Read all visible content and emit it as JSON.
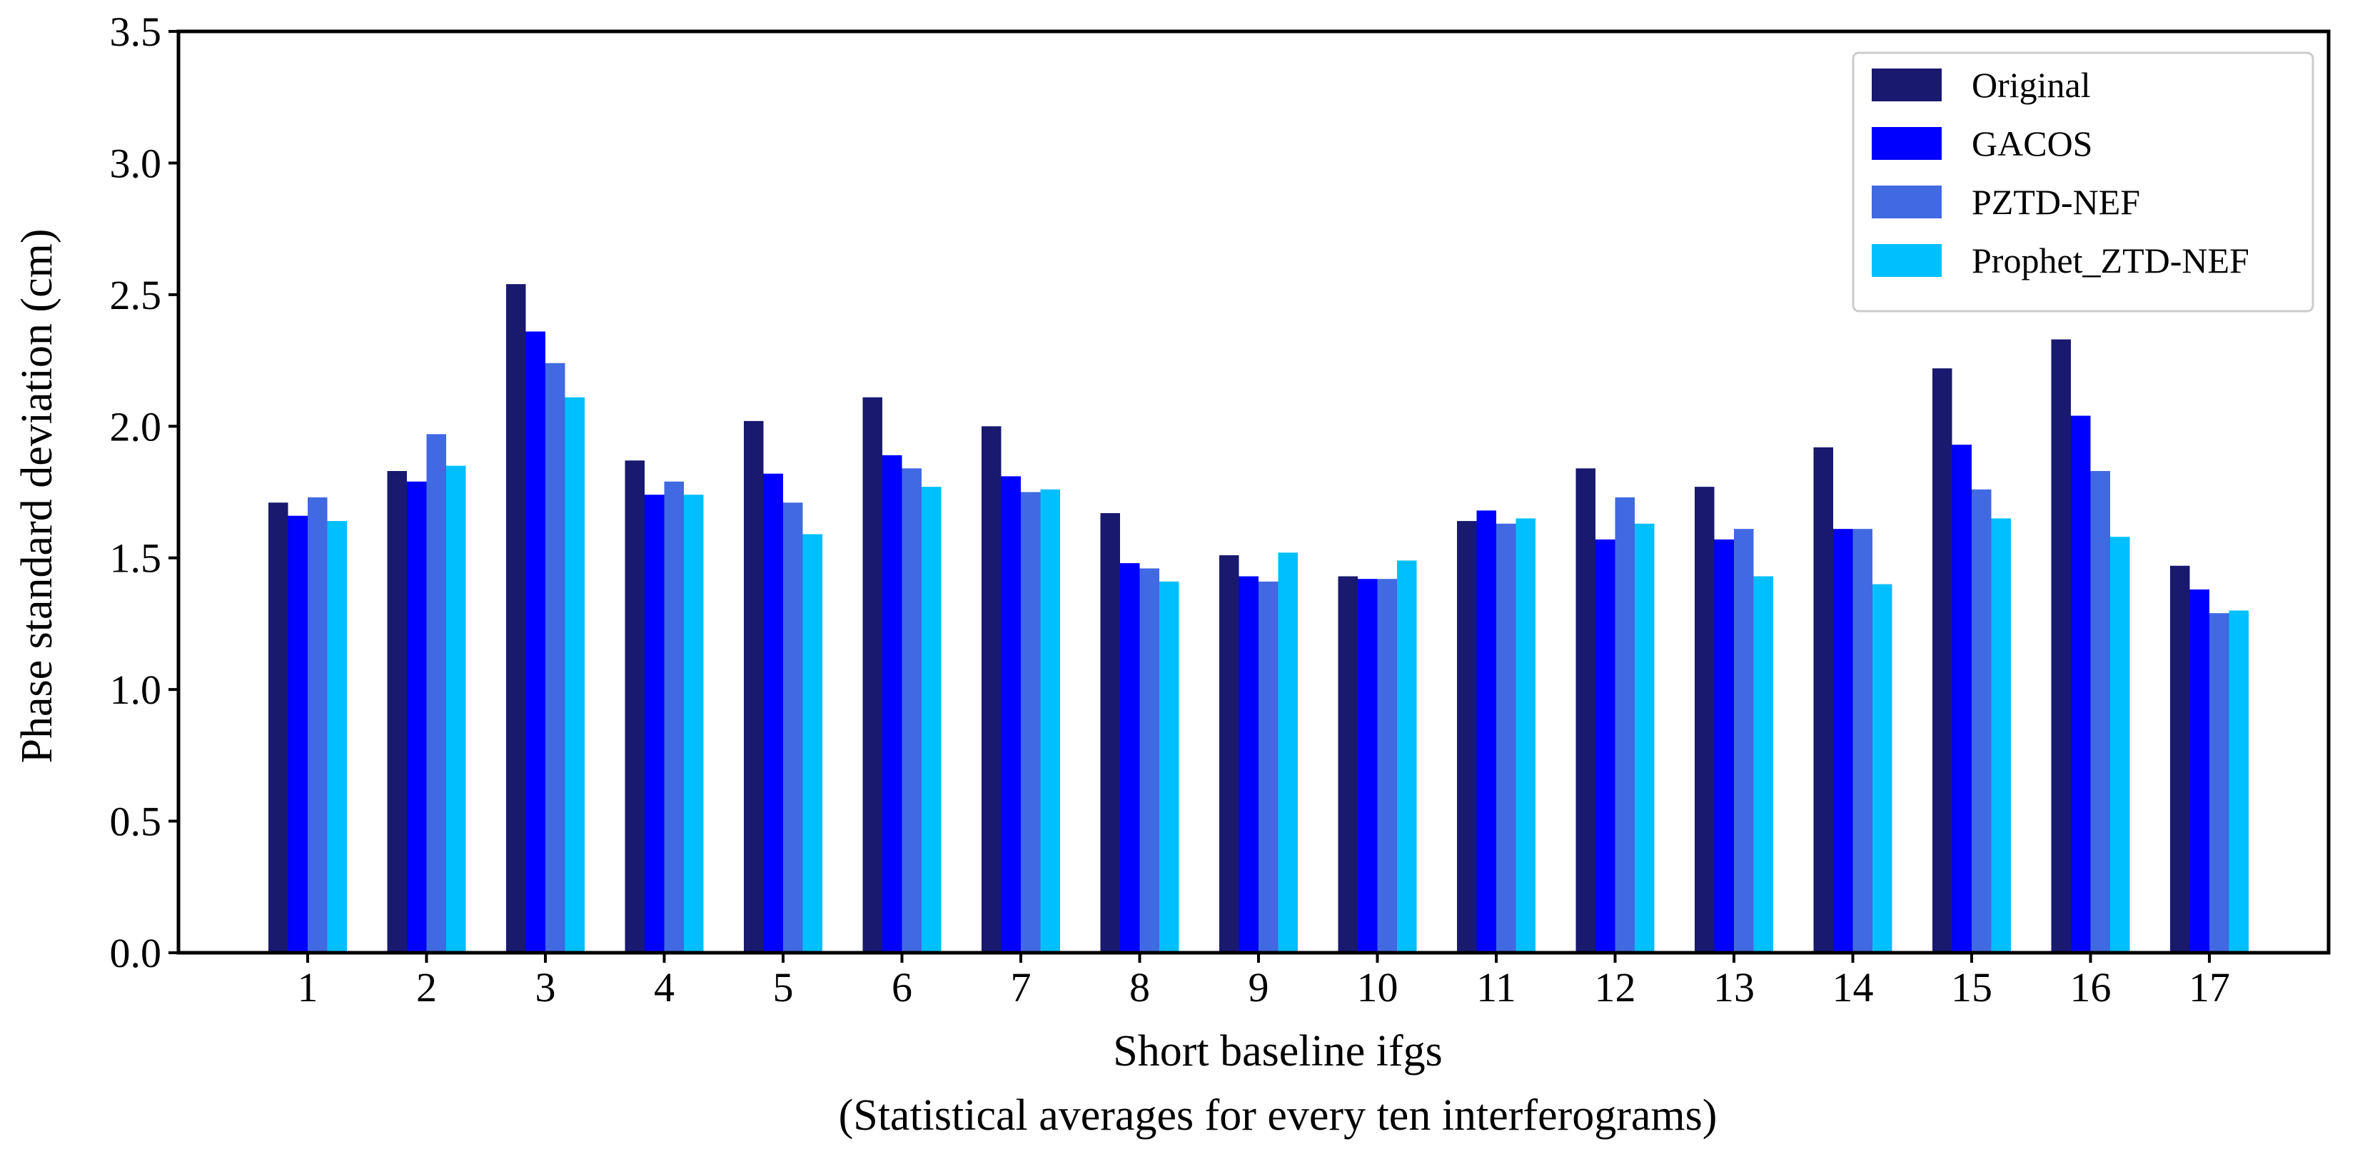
{
  "chart_data": {
    "type": "bar",
    "title": "",
    "xlabel": "Short baseline ifgs",
    "xlabel_sub": "(Statistical averages for every ten interferograms)",
    "ylabel": "Phase standard deviation (cm)",
    "ylim": [
      0,
      3.5
    ],
    "yticks": [
      "0.0",
      "0.5",
      "1.0",
      "1.5",
      "2.0",
      "2.5",
      "3.0",
      "3.5"
    ],
    "ytick_values": [
      0,
      0.5,
      1.0,
      1.5,
      2.0,
      2.5,
      3.0,
      3.5
    ],
    "categories": [
      "1",
      "2",
      "3",
      "4",
      "5",
      "6",
      "7",
      "8",
      "9",
      "10",
      "11",
      "12",
      "13",
      "14",
      "15",
      "16",
      "17"
    ],
    "grid": false,
    "legend_position": "top-right",
    "series": [
      {
        "name": "Original",
        "color": "#191970",
        "values": [
          1.71,
          1.83,
          2.54,
          1.87,
          2.02,
          2.11,
          2.0,
          1.67,
          1.51,
          1.43,
          1.64,
          1.84,
          1.77,
          1.92,
          2.22,
          2.33,
          1.47
        ]
      },
      {
        "name": "GACOS",
        "color": "#0000FF",
        "values": [
          1.66,
          1.79,
          2.36,
          1.74,
          1.82,
          1.89,
          1.81,
          1.48,
          1.43,
          1.42,
          1.68,
          1.57,
          1.57,
          1.61,
          1.93,
          2.04,
          1.38
        ]
      },
      {
        "name": "PZTD-NEF",
        "color": "#4169E1",
        "values": [
          1.73,
          1.97,
          2.24,
          1.79,
          1.71,
          1.84,
          1.75,
          1.46,
          1.41,
          1.42,
          1.63,
          1.73,
          1.61,
          1.61,
          1.76,
          1.83,
          1.29
        ]
      },
      {
        "name": "Prophet_ZTD-NEF",
        "color": "#00BFFF",
        "values": [
          1.64,
          1.85,
          2.11,
          1.74,
          1.59,
          1.77,
          1.76,
          1.41,
          1.52,
          1.49,
          1.65,
          1.63,
          1.43,
          1.4,
          1.65,
          1.58,
          1.3
        ]
      }
    ]
  }
}
